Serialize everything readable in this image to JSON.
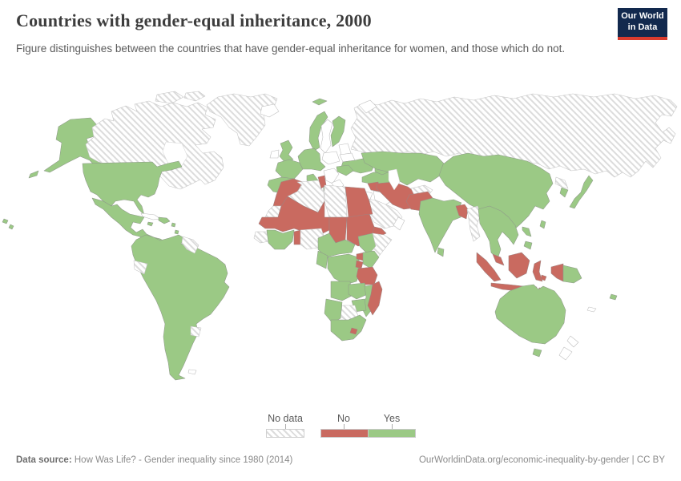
{
  "header": {
    "title": "Countries with gender-equal inheritance, 2000",
    "subtitle": "Figure distinguishes between the countries that have gender-equal inheritance for women, and those which do not."
  },
  "logo": {
    "line1": "Our World",
    "line2": "in Data",
    "bg": "#12294e",
    "bar": "#d93b2e"
  },
  "legend": {
    "no_data_label": "No data",
    "no_label": "No",
    "yes_label": "Yes"
  },
  "footer": {
    "datasource_prefix": "Data source:",
    "datasource": " How Was Life? - Gender inequality since 1980 (2014)",
    "right": "OurWorldinData.org/economic-inequality-by-gender | CC BY"
  },
  "colors": {
    "yes": "#9bc985",
    "no": "#c96a60",
    "no_data_stripe": "#dcdcdc",
    "border": "#9a9a9a"
  },
  "chart_data": {
    "type": "choropleth_map",
    "title": "Countries with gender-equal inheritance, 2000",
    "year": "2000",
    "categories": [
      "No data",
      "No",
      "Yes"
    ],
    "legend_position": "bottom-center",
    "values": {
      "yes": [
        "United States",
        "Mexico",
        "Guatemala",
        "Honduras",
        "Nicaragua",
        "Costa Rica",
        "Panama",
        "Jamaica",
        "Dominican Republic",
        "Haiti",
        "Colombia",
        "Venezuela",
        "Peru",
        "Brazil",
        "Bolivia",
        "Paraguay",
        "Chile",
        "Argentina",
        "United Kingdom",
        "Spain",
        "Portugal",
        "France",
        "Germany",
        "Italy",
        "Norway",
        "Finland",
        "Ukraine",
        "Romania",
        "Turkey",
        "Kazakhstan",
        "China",
        "Mongolia",
        "India",
        "Sri Lanka",
        "Thailand",
        "Laos",
        "Vietnam",
        "Cambodia",
        "Philippines",
        "Japan",
        "South Korea",
        "Australia",
        "Papua New Guinea",
        "Fiji",
        "Ethiopia",
        "Kenya",
        "Democratic Republic of Congo",
        "Congo",
        "Gabon",
        "Cameroon",
        "Central African Republic",
        "Ghana",
        "Cote d'Ivoire",
        "Burkina Faso",
        "Angola",
        "Zambia",
        "Zimbabwe",
        "Mozambique",
        "Malawi",
        "Namibia",
        "South Africa"
      ],
      "no": [
        "Morocco",
        "Tunisia",
        "Mauritania",
        "Mali",
        "Niger",
        "Senegal",
        "Benin",
        "Chad",
        "Sudan",
        "Egypt",
        "Syria",
        "Iran",
        "Yemen",
        "Pakistan",
        "Bangladesh",
        "Uganda",
        "Rwanda",
        "Burundi",
        "Tanzania",
        "Madagascar",
        "Lesotho",
        "Malaysia",
        "Indonesia"
      ],
      "no_data": [
        "Canada",
        "Greenland",
        "Russia",
        "Sweden",
        "Poland",
        "Belarus",
        "Greece",
        "Iceland",
        "Ireland",
        "Cuba",
        "Ecuador",
        "Uruguay",
        "Guyana",
        "Suriname",
        "Algeria",
        "Libya",
        "Western Sahara",
        "Saudi Arabia",
        "Iraq",
        "Jordan",
        "Oman",
        "Afghanistan",
        "Myanmar",
        "North Korea",
        "Somalia",
        "Nigeria",
        "Guinea",
        "Botswana",
        "New Zealand"
      ]
    }
  },
  "map": {
    "regions": [
      {
        "id": "hawaii",
        "status": "yes"
      },
      {
        "id": "alaska",
        "status": "yes"
      },
      {
        "id": "aleutians",
        "status": "yes"
      },
      {
        "id": "canada",
        "status": "no_data"
      },
      {
        "id": "arctic_1",
        "status": "no_data"
      },
      {
        "id": "arctic_2",
        "status": "no_data"
      },
      {
        "id": "hudson_bay",
        "status": "water"
      },
      {
        "id": "greenland",
        "status": "no_data"
      },
      {
        "id": "iceland",
        "status": "outline"
      },
      {
        "id": "usa",
        "status": "yes"
      },
      {
        "id": "mexico_ca",
        "status": "yes"
      },
      {
        "id": "cuba",
        "status": "outline"
      },
      {
        "id": "jamaica",
        "status": "yes"
      },
      {
        "id": "hispaniola",
        "status": "yes"
      },
      {
        "id": "antilles",
        "status": "yes"
      },
      {
        "id": "trinidad",
        "status": "yes"
      },
      {
        "id": "samerica",
        "status": "yes"
      },
      {
        "id": "guyanas",
        "status": "no_data"
      },
      {
        "id": "ecuador",
        "status": "no_data"
      },
      {
        "id": "uruguay",
        "status": "no_data"
      },
      {
        "id": "falklands",
        "status": "outline"
      },
      {
        "id": "svalbard",
        "status": "yes"
      },
      {
        "id": "norway",
        "status": "yes"
      },
      {
        "id": "sweden",
        "status": "outline"
      },
      {
        "id": "finland",
        "status": "yes"
      },
      {
        "id": "uk",
        "status": "yes"
      },
      {
        "id": "ireland",
        "status": "outline"
      },
      {
        "id": "iberia",
        "status": "yes"
      },
      {
        "id": "france",
        "status": "yes"
      },
      {
        "id": "ceurope",
        "status": "yes"
      },
      {
        "id": "italy",
        "status": "yes"
      },
      {
        "id": "sicily",
        "status": "yes"
      },
      {
        "id": "corsica",
        "status": "yes"
      },
      {
        "id": "poland",
        "status": "outline"
      },
      {
        "id": "baltics",
        "status": "outline"
      },
      {
        "id": "belarus",
        "status": "outline"
      },
      {
        "id": "ukraine",
        "status": "yes"
      },
      {
        "id": "romania",
        "status": "yes"
      },
      {
        "id": "balkans",
        "status": "outline"
      },
      {
        "id": "greece",
        "status": "outline"
      },
      {
        "id": "crete",
        "status": "outline"
      },
      {
        "id": "russia",
        "status": "no_data"
      },
      {
        "id": "novaya",
        "status": "outline"
      },
      {
        "id": "turkey",
        "status": "yes"
      },
      {
        "id": "caucasus",
        "status": "yes"
      },
      {
        "id": "syria",
        "status": "no"
      },
      {
        "id": "iraq",
        "status": "outline"
      },
      {
        "id": "jordan",
        "status": "outline"
      },
      {
        "id": "saudi",
        "status": "no_data"
      },
      {
        "id": "yemen",
        "status": "no"
      },
      {
        "id": "oman",
        "status": "outline"
      },
      {
        "id": "iran",
        "status": "no"
      },
      {
        "id": "afghanistan",
        "status": "no_data"
      },
      {
        "id": "centralasia",
        "status": "yes"
      },
      {
        "id": "caspian",
        "status": "water"
      },
      {
        "id": "china",
        "status": "yes"
      },
      {
        "id": "nkorea",
        "status": "no_data"
      },
      {
        "id": "skorea",
        "status": "yes"
      },
      {
        "id": "japan",
        "status": "yes"
      },
      {
        "id": "taiwan",
        "status": "yes"
      },
      {
        "id": "pakistan",
        "status": "no"
      },
      {
        "id": "india",
        "status": "yes"
      },
      {
        "id": "srilanka",
        "status": "yes"
      },
      {
        "id": "bangladesh",
        "status": "no"
      },
      {
        "id": "myanmar",
        "status": "no_data"
      },
      {
        "id": "sea_mainland",
        "status": "yes"
      },
      {
        "id": "malaysia",
        "status": "no"
      },
      {
        "id": "sumatra",
        "status": "no"
      },
      {
        "id": "java",
        "status": "no"
      },
      {
        "id": "borneo",
        "status": "no"
      },
      {
        "id": "sulawesi",
        "status": "no"
      },
      {
        "id": "lsunda",
        "status": "no"
      },
      {
        "id": "moluccas",
        "status": "no"
      },
      {
        "id": "wpapua",
        "status": "no"
      },
      {
        "id": "png",
        "status": "yes"
      },
      {
        "id": "philippines",
        "status": "yes"
      },
      {
        "id": "morocco",
        "status": "no"
      },
      {
        "id": "wsahara",
        "status": "no_data"
      },
      {
        "id": "algeria",
        "status": "no_data"
      },
      {
        "id": "tunisia",
        "status": "no"
      },
      {
        "id": "libya",
        "status": "no_data"
      },
      {
        "id": "egypt",
        "status": "no"
      },
      {
        "id": "sahel",
        "status": "no"
      },
      {
        "id": "chad",
        "status": "no"
      },
      {
        "id": "sudan",
        "status": "no"
      },
      {
        "id": "guinea",
        "status": "no_data"
      },
      {
        "id": "wafrica_green",
        "status": "yes"
      },
      {
        "id": "benin",
        "status": "no"
      },
      {
        "id": "nigeria",
        "status": "no_data"
      },
      {
        "id": "cameroon_car",
        "status": "yes"
      },
      {
        "id": "gabon",
        "status": "yes"
      },
      {
        "id": "drc",
        "status": "yes"
      },
      {
        "id": "ethiopia",
        "status": "yes"
      },
      {
        "id": "somalia",
        "status": "no_data"
      },
      {
        "id": "uganda",
        "status": "no"
      },
      {
        "id": "kenya",
        "status": "yes"
      },
      {
        "id": "rwanda",
        "status": "no"
      },
      {
        "id": "tanzania",
        "status": "no"
      },
      {
        "id": "angola",
        "status": "yes"
      },
      {
        "id": "zambia",
        "status": "yes"
      },
      {
        "id": "mozambique",
        "status": "yes"
      },
      {
        "id": "zimbabwe",
        "status": "yes"
      },
      {
        "id": "botswana",
        "status": "no_data"
      },
      {
        "id": "namibia",
        "status": "yes"
      },
      {
        "id": "southafrica",
        "status": "yes"
      },
      {
        "id": "lesotho",
        "status": "no"
      },
      {
        "id": "madagascar",
        "status": "no"
      },
      {
        "id": "australia",
        "status": "yes"
      },
      {
        "id": "tasmania",
        "status": "yes"
      },
      {
        "id": "nz",
        "status": "outline"
      },
      {
        "id": "fiji",
        "status": "yes"
      },
      {
        "id": "newcaledonia",
        "status": "outline"
      }
    ]
  }
}
